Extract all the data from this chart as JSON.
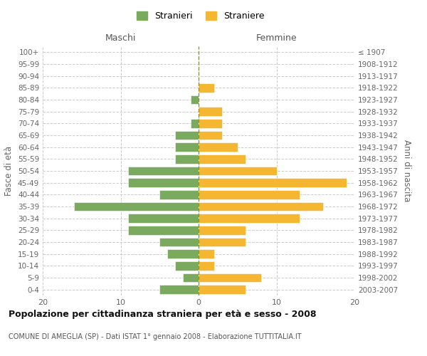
{
  "age_groups": [
    "0-4",
    "5-9",
    "10-14",
    "15-19",
    "20-24",
    "25-29",
    "30-34",
    "35-39",
    "40-44",
    "45-49",
    "50-54",
    "55-59",
    "60-64",
    "65-69",
    "70-74",
    "75-79",
    "80-84",
    "85-89",
    "90-94",
    "95-99",
    "100+"
  ],
  "birth_years": [
    "2003-2007",
    "1998-2002",
    "1993-1997",
    "1988-1992",
    "1983-1987",
    "1978-1982",
    "1973-1977",
    "1968-1972",
    "1963-1967",
    "1958-1962",
    "1953-1957",
    "1948-1952",
    "1943-1947",
    "1938-1942",
    "1933-1937",
    "1928-1932",
    "1923-1927",
    "1918-1922",
    "1913-1917",
    "1908-1912",
    "≤ 1907"
  ],
  "maschi": [
    5,
    2,
    3,
    4,
    5,
    9,
    9,
    16,
    5,
    9,
    9,
    3,
    3,
    3,
    1,
    0,
    1,
    0,
    0,
    0,
    0
  ],
  "femmine": [
    6,
    8,
    2,
    2,
    6,
    6,
    13,
    16,
    13,
    19,
    10,
    6,
    5,
    3,
    3,
    3,
    0,
    2,
    0,
    0,
    0
  ],
  "color_maschi": "#7aaa5e",
  "color_femmine": "#f5b731",
  "title": "Popolazione per cittadinanza straniera per età e sesso - 2008",
  "subtitle": "COMUNE DI AMEGLIA (SP) - Dati ISTAT 1° gennaio 2008 - Elaborazione TUTTITALIA.IT",
  "xlabel_left": "Maschi",
  "xlabel_right": "Femmine",
  "ylabel_left": "Fasce di età",
  "ylabel_right": "Anni di nascita",
  "legend_maschi": "Stranieri",
  "legend_femmine": "Straniere",
  "xlim": 20,
  "background_color": "#ffffff",
  "grid_color": "#cccccc"
}
